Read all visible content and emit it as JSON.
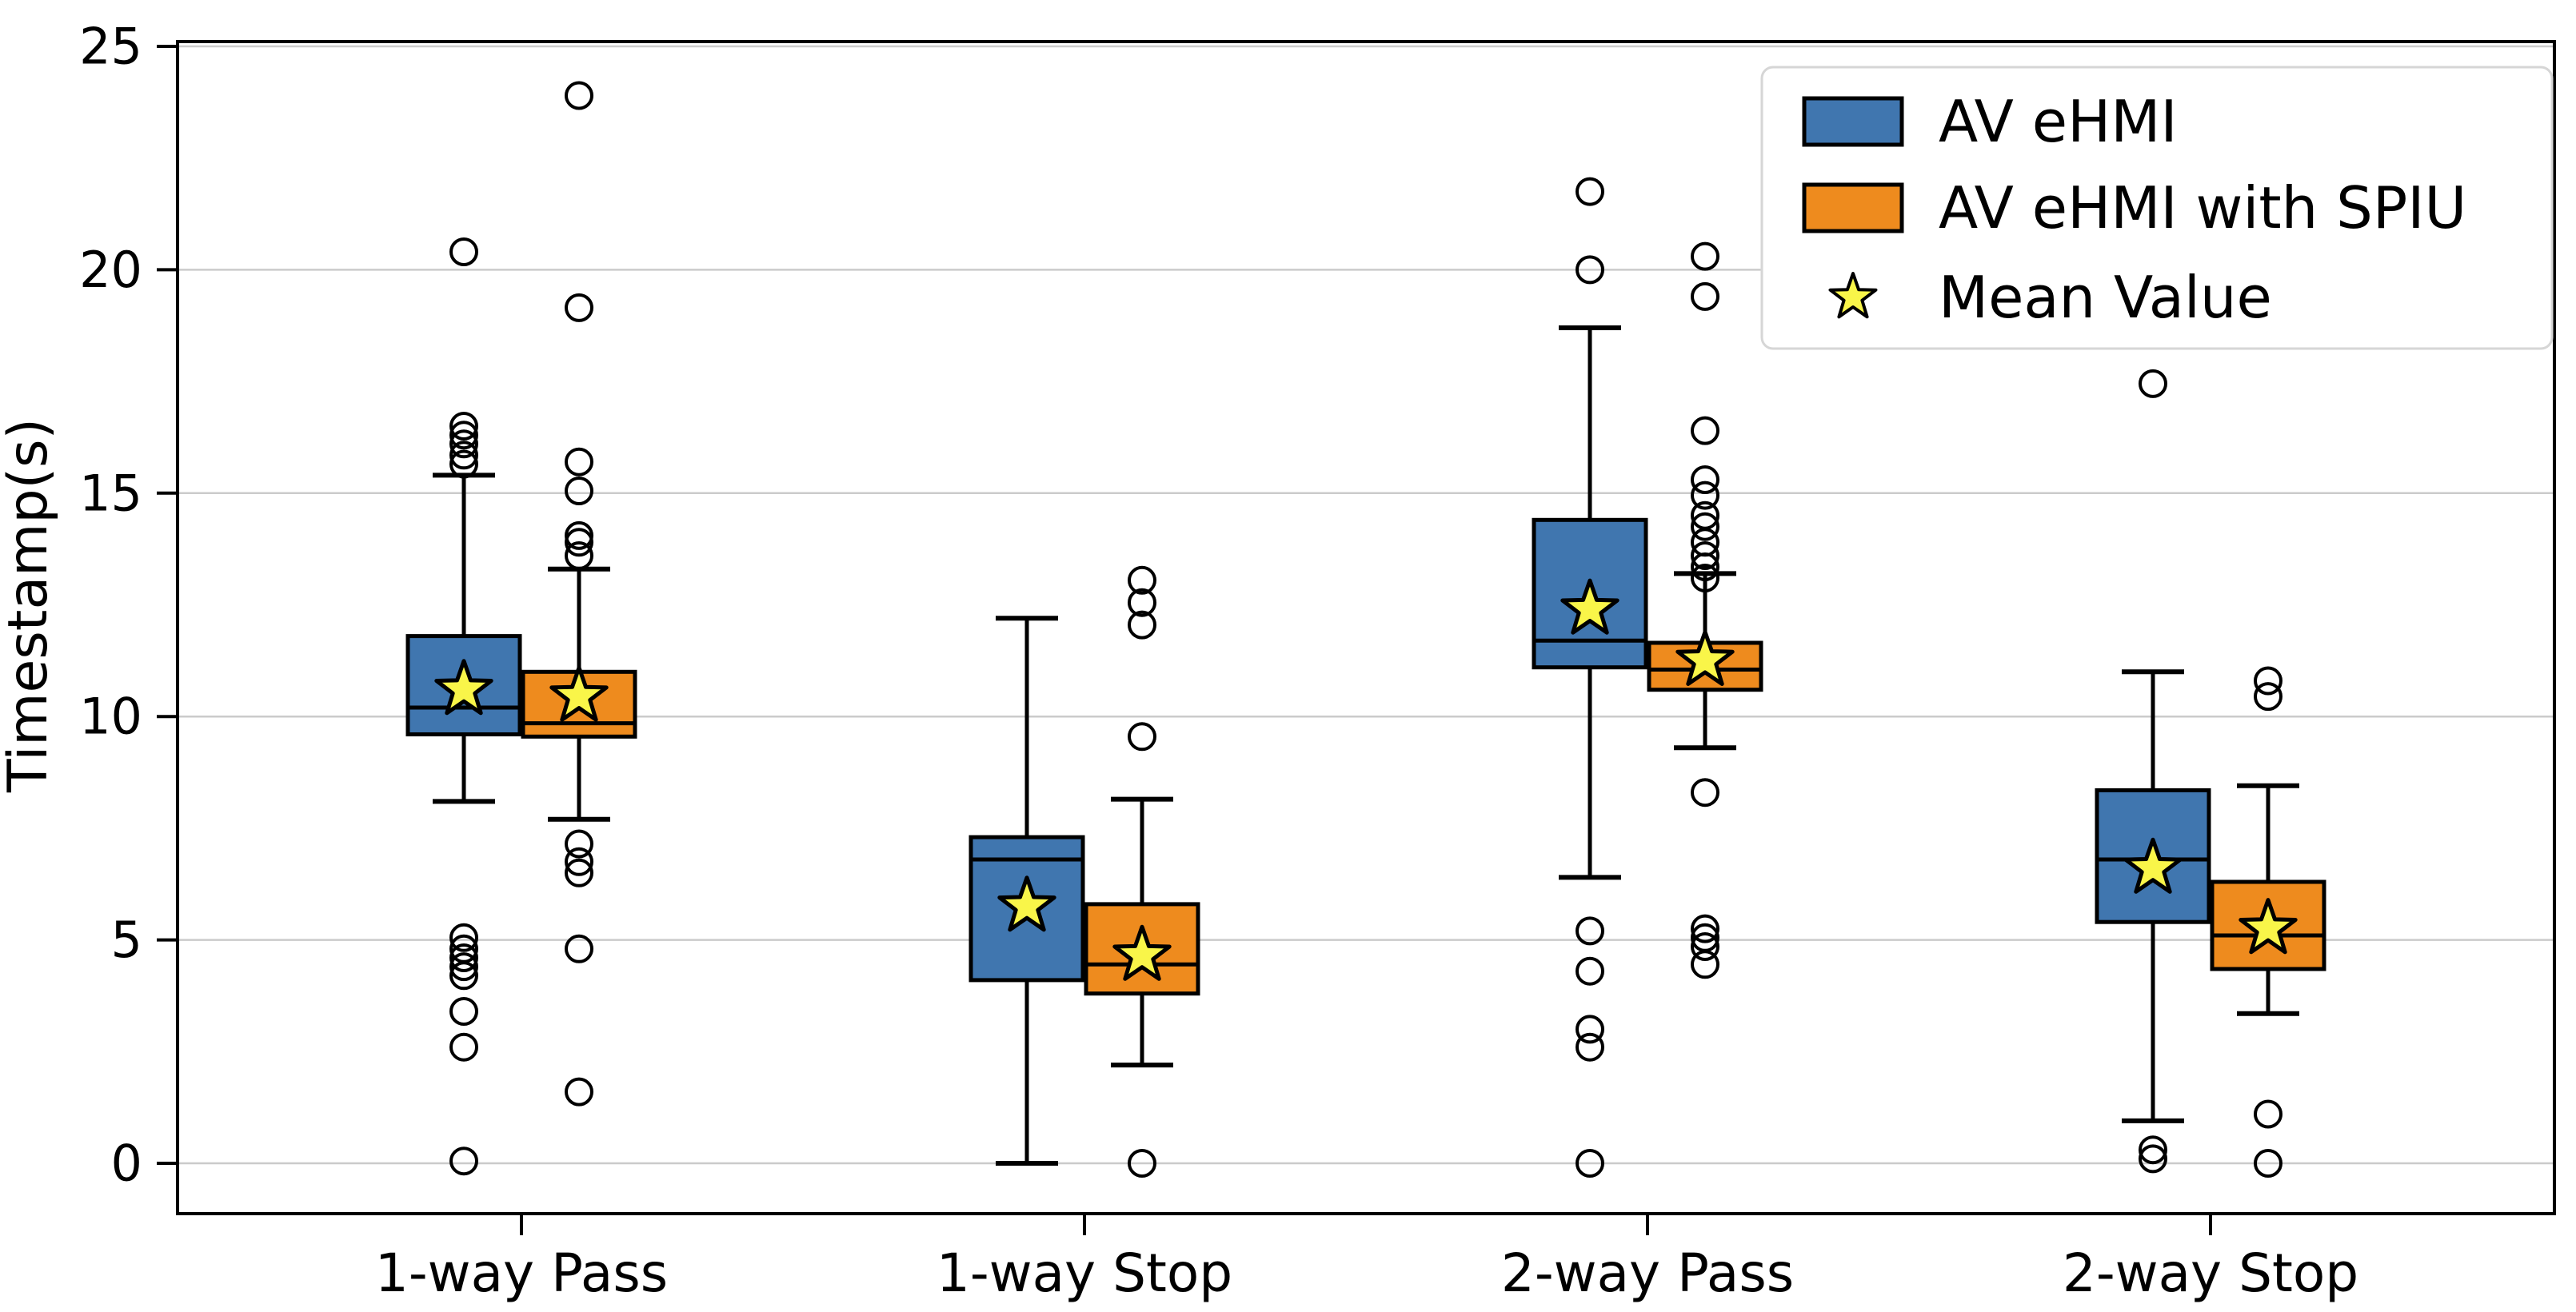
{
  "chart_data": {
    "type": "boxplot",
    "title": "",
    "xlabel": "",
    "ylabel": "Timestamp(s)",
    "ylim": [
      -1.1,
      25.2
    ],
    "yticks": [
      0,
      5,
      10,
      15,
      20,
      25
    ],
    "categories": [
      "1-way Pass",
      "1-way Stop",
      "2-way Pass",
      "2-way Stop"
    ],
    "grid": true,
    "legend_position": "upper right",
    "legend": {
      "series1": "AV eHMI",
      "series2": "AV eHMI with SPIU",
      "mean": "Mean Value"
    },
    "mean_marker": {
      "shape": "star",
      "fill": "#f9f549",
      "edge": "#000000"
    },
    "series": [
      {
        "name": "AV eHMI",
        "color": "#4076af",
        "boxes": [
          {
            "category": "1-way Pass",
            "whislo": 8.1,
            "q1": 9.6,
            "med": 10.2,
            "mean": 10.6,
            "q3": 11.8,
            "whishi": 15.4,
            "outliers": [
              20.4,
              16.5,
              16.3,
              16.1,
              15.85,
              15.65,
              5.05,
              4.8,
              4.6,
              4.4,
              4.2,
              3.4,
              2.6,
              0.05
            ]
          },
          {
            "category": "1-way Stop",
            "whislo": 0.0,
            "q1": 4.1,
            "med": 6.8,
            "mean": 5.75,
            "q3": 7.3,
            "whishi": 12.2,
            "outliers": []
          },
          {
            "category": "2-way Pass",
            "whislo": 6.4,
            "q1": 11.1,
            "med": 11.7,
            "mean": 12.4,
            "q3": 14.4,
            "whishi": 18.7,
            "outliers": [
              21.75,
              20.0,
              5.2,
              4.3,
              3.0,
              2.6,
              0.0
            ]
          },
          {
            "category": "2-way Stop",
            "whislo": 0.95,
            "q1": 5.4,
            "med": 6.8,
            "mean": 6.6,
            "q3": 8.35,
            "whishi": 11.0,
            "outliers": [
              17.45,
              0.3,
              0.1
            ]
          }
        ]
      },
      {
        "name": "AV eHMI with SPIU",
        "color": "#ee8b1e",
        "boxes": [
          {
            "category": "1-way Pass",
            "whislo": 7.7,
            "q1": 9.55,
            "med": 9.85,
            "mean": 10.45,
            "q3": 11.0,
            "whishi": 13.3,
            "outliers": [
              23.9,
              19.15,
              15.7,
              15.05,
              14.05,
              13.9,
              13.6,
              7.15,
              6.75,
              6.5,
              4.8,
              1.6
            ]
          },
          {
            "category": "1-way Stop",
            "whislo": 2.2,
            "q1": 3.8,
            "med": 4.45,
            "mean": 4.65,
            "q3": 5.8,
            "whishi": 8.15,
            "outliers": [
              13.05,
              12.55,
              12.05,
              9.55,
              0.0
            ]
          },
          {
            "category": "2-way Pass",
            "whislo": 9.3,
            "q1": 10.6,
            "med": 11.05,
            "mean": 11.25,
            "q3": 11.65,
            "whishi": 13.2,
            "outliers": [
              20.3,
              19.4,
              16.4,
              15.3,
              14.95,
              14.5,
              14.25,
              13.9,
              13.6,
              13.35,
              13.1,
              8.3,
              5.25,
              5.05,
              4.85,
              4.45
            ]
          },
          {
            "category": "2-way Stop",
            "whislo": 3.35,
            "q1": 4.35,
            "med": 5.1,
            "mean": 5.25,
            "q3": 6.3,
            "whishi": 8.45,
            "outliers": [
              10.8,
              10.45,
              1.1,
              0.0
            ]
          }
        ]
      }
    ]
  },
  "styles": {
    "grid_color": "#cbcbcb",
    "spine_color": "#000000",
    "legend_border": "#d6d6d6",
    "background": "#ffffff"
  }
}
